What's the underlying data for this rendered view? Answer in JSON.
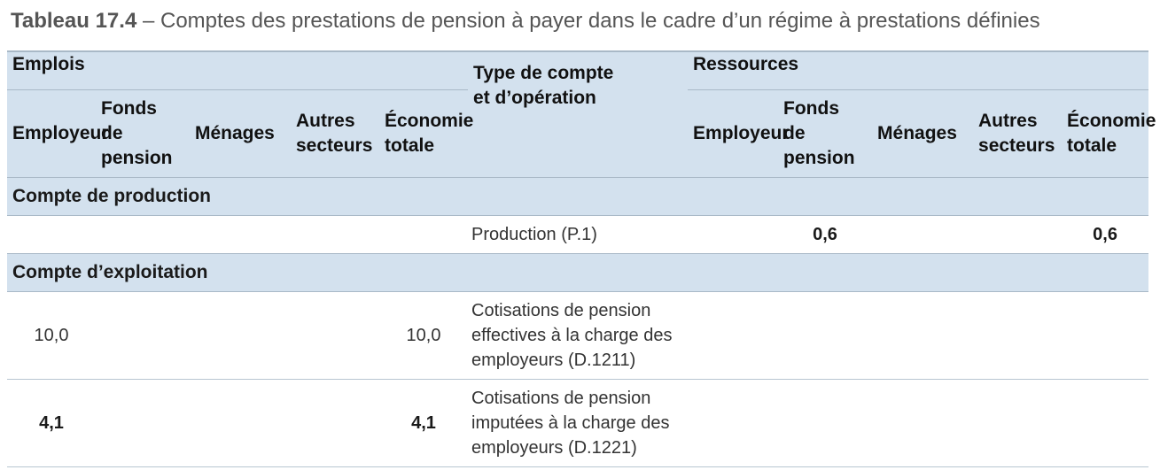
{
  "caption": {
    "lead": "Tableau 17.4",
    "text": " – Comptes des prestations de pension à payer dans le cadre d’un régime à prestations définies"
  },
  "header": {
    "uses_label": "Emplois",
    "type_label": "Type de compte et d’opération",
    "resources_label": "Ressources",
    "uses_columns": [
      "Employeur",
      "Fonds de pension",
      "Ménages",
      "Autres secteurs",
      "Économie totale"
    ],
    "resources_columns": [
      "Employeur",
      "Fonds de pension",
      "Ménages",
      "Autres secteurs",
      "Économie totale"
    ]
  },
  "sections": [
    {
      "title": "Compte de production",
      "rows": [
        {
          "label": "Production (P.1)",
          "uses": [
            "",
            "",
            "",
            "",
            ""
          ],
          "resources": [
            "",
            "0,6",
            "",
            "",
            "0,6"
          ],
          "bold": true
        }
      ]
    },
    {
      "title": "Compte d’exploitation",
      "rows": [
        {
          "label": "Cotisations de pension effectives à la charge des employeurs (D.1211)",
          "uses": [
            "10,0",
            "",
            "",
            "",
            "10,0"
          ],
          "resources": [
            "",
            "",
            "",
            "",
            ""
          ],
          "bold": false
        },
        {
          "label": "Cotisations de pension imputées à la charge des employeurs (D.1221)",
          "uses": [
            "4,1",
            "",
            "",
            "",
            "4,1"
          ],
          "resources": [
            "",
            "",
            "",
            "",
            ""
          ],
          "bold": true
        }
      ]
    }
  ]
}
